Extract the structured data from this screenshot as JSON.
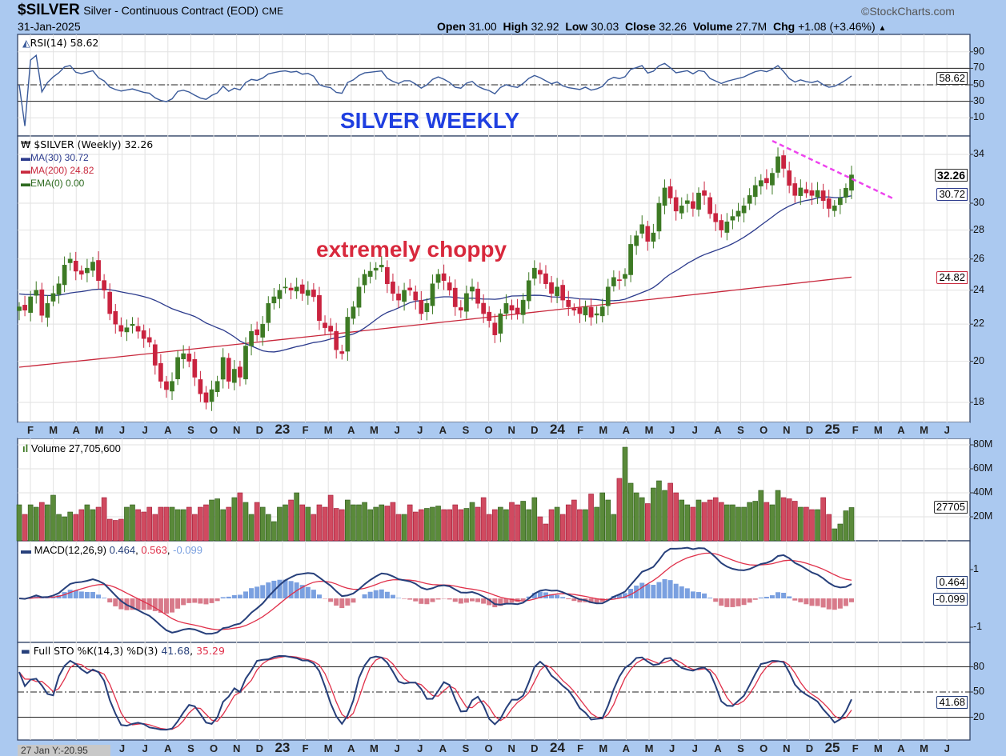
{
  "header": {
    "symbol": "$SILVER",
    "description": "Silver - Continuous Contract (EOD)",
    "exchange": "CME",
    "date": "31-Jan-2025",
    "watermark": "©StockCharts.com",
    "open_label": "Open",
    "open": "31.00",
    "high_label": "High",
    "high": "32.92",
    "low_label": "Low",
    "low": "30.03",
    "close_label": "Close",
    "close": "32.26",
    "volume_label": "Volume",
    "volume": "27.7M",
    "chg_label": "Chg",
    "chg": "+1.08 (+3.46%)",
    "chg_icon": "triangle-up"
  },
  "annotations": {
    "title": "SILVER WEEKLY",
    "note": "extremely choppy",
    "title_color": "#1f3fe0",
    "note_color": "#d8283c",
    "trendline_color": "#ee44ee"
  },
  "rsi": {
    "legend": "RSI(14) 58.62",
    "ticks": [
      "90",
      "70",
      "50",
      "30",
      "10"
    ],
    "tag": "58.62"
  },
  "price": {
    "legend": "$SILVER (Weekly) 32.26",
    "ma30": "MA(30) 30.72",
    "ma200": "MA(200) 24.82",
    "ema": "EMA(0) 0.00",
    "ticks": [
      "34",
      "30",
      "28",
      "26",
      "24",
      "22",
      "20",
      "18"
    ],
    "tag_close": "32.26",
    "tag_ma30": "30.72",
    "tag_ma200": "24.82"
  },
  "volume": {
    "legend": "Volume 27,705,600",
    "ticks": [
      "80M",
      "60M",
      "40M",
      "20M"
    ],
    "tag": "27705"
  },
  "macd": {
    "legend_name": "MACD(12,26,9)",
    "v1": "0.464",
    "v2": "0.563",
    "v3": "-0.099",
    "ticks": [
      "1",
      "-1"
    ],
    "tag1": "0.464",
    "tag2": "-0.099"
  },
  "sto": {
    "legend_name": "Full STO %K(14,3) %D(3)",
    "k": "41.68",
    "d": "35.29",
    "ticks": [
      "80",
      "50",
      "20"
    ],
    "tag": "41.68"
  },
  "cursor_readout": "27 Jan Y:-20.95",
  "months": [
    "F",
    "M",
    "A",
    "M",
    "J",
    "J",
    "A",
    "S",
    "O",
    "N",
    "D",
    "23",
    "F",
    "M",
    "A",
    "M",
    "J",
    "J",
    "A",
    "S",
    "O",
    "N",
    "D",
    "24",
    "F",
    "M",
    "A",
    "M",
    "J",
    "J",
    "A",
    "S",
    "O",
    "N",
    "D",
    "25",
    "F",
    "M",
    "A",
    "M",
    "J"
  ],
  "chart_data": {
    "type": "candlestick",
    "title": "$SILVER Silver - Continuous Contract (EOD) weekly",
    "period": "weekly, Jan 2022 - Jan 2025",
    "y_scale": "log",
    "ylim": [
      17,
      36
    ],
    "closes": [
      23.0,
      22.8,
      23.6,
      24.0,
      22.5,
      23.2,
      23.8,
      24.4,
      25.6,
      26.0,
      25.2,
      25.0,
      25.4,
      25.8,
      24.6,
      24.0,
      22.6,
      22.0,
      21.6,
      21.8,
      22.0,
      21.6,
      21.2,
      21.0,
      19.8,
      19.0,
      18.6,
      19.0,
      20.2,
      20.4,
      20.0,
      19.2,
      18.4,
      18.0,
      18.6,
      19.0,
      20.2,
      19.0,
      19.6,
      19.2,
      20.8,
      21.6,
      21.4,
      22.0,
      23.2,
      23.6,
      24.0,
      24.2,
      24.0,
      24.2,
      23.8,
      24.0,
      23.6,
      22.2,
      21.8,
      21.6,
      20.6,
      20.4,
      22.4,
      23.0,
      24.2,
      25.0,
      25.2,
      25.4,
      25.6,
      24.4,
      23.8,
      23.4,
      24.0,
      24.0,
      23.4,
      22.6,
      23.2,
      24.4,
      25.0,
      24.6,
      24.0,
      23.0,
      22.8,
      23.8,
      24.2,
      23.2,
      22.6,
      22.2,
      21.4,
      22.6,
      23.2,
      22.8,
      22.6,
      23.4,
      24.6,
      25.4,
      25.0,
      24.4,
      23.8,
      24.2,
      23.4,
      23.0,
      22.8,
      22.6,
      23.0,
      22.4,
      22.6,
      23.0,
      24.2,
      24.8,
      24.6,
      25.0,
      27.0,
      27.6,
      28.4,
      27.2,
      27.8,
      30.0,
      31.2,
      30.4,
      29.4,
      29.8,
      30.2,
      29.6,
      30.8,
      30.6,
      29.2,
      28.6,
      28.0,
      28.6,
      29.0,
      29.4,
      29.8,
      30.6,
      31.4,
      31.8,
      31.6,
      32.4,
      33.8,
      32.8,
      31.4,
      30.6,
      31.2,
      30.8,
      30.6,
      31.0,
      30.2,
      29.6,
      29.8,
      30.4,
      31.18,
      32.26
    ],
    "volume_millions": [
      30,
      22,
      30,
      28,
      32,
      30,
      38,
      22,
      20,
      24,
      22,
      26,
      30,
      26,
      28,
      36,
      18,
      17,
      18,
      28,
      30,
      26,
      24,
      28,
      22,
      28,
      28,
      28,
      26,
      26,
      28,
      22,
      28,
      30,
      34,
      35,
      26,
      28,
      36,
      40,
      32,
      22,
      32,
      28,
      22,
      16,
      28,
      30,
      34,
      40,
      30,
      28,
      22,
      30,
      28,
      38,
      27,
      26,
      34,
      30,
      30,
      32,
      26,
      28,
      30,
      29,
      32,
      22,
      22,
      30,
      24,
      26,
      27,
      28,
      29,
      26,
      26,
      30,
      26,
      27,
      32,
      28,
      36,
      22,
      26,
      28,
      26,
      32,
      30,
      33,
      26,
      36,
      20,
      14,
      26,
      28,
      22,
      30,
      34,
      26,
      26,
      39,
      28,
      40,
      34,
      22,
      52,
      78,
      48,
      40,
      36,
      31,
      44,
      50,
      42,
      48,
      40,
      34,
      30,
      28,
      34,
      32,
      34,
      36,
      32,
      30,
      30,
      28,
      28,
      32,
      33,
      42,
      32,
      30,
      42,
      36,
      35,
      33,
      28,
      28,
      26,
      26,
      36,
      22,
      10,
      14,
      25,
      27.7
    ],
    "ma200_range": [
      19.7,
      24.82
    ],
    "trendline": {
      "from_price": 35.2,
      "to_price": 30.3
    },
    "colors": {
      "up": "#3d7a24",
      "down": "#c9233f",
      "ma30": "#2b3a8c",
      "ma200": "#c8283c",
      "rsi": "#3a5a9a",
      "macd": "#263f7a",
      "signal": "#e0304a",
      "hist_pos": "#7aa0e0",
      "hist_neg": "#d87a8a"
    }
  }
}
